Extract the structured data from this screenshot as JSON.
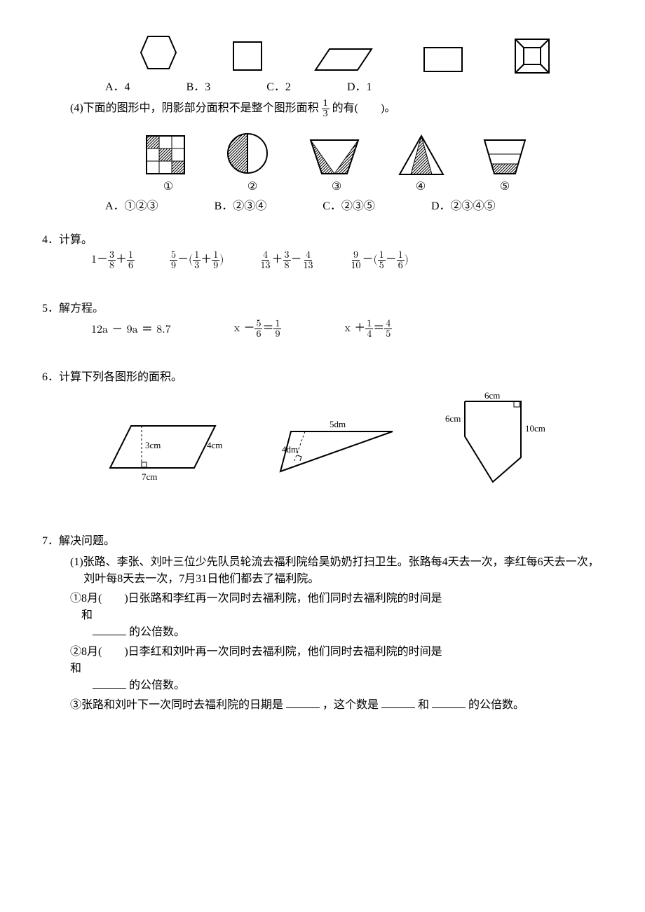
{
  "q3_shapes": {
    "labels": [
      "A．4",
      "B．3",
      "C．2",
      "D．1"
    ]
  },
  "q3_4": {
    "stem_pre": "(4)下面的图形中，阴影部分面积不是整个图形面积",
    "frac": {
      "num": "1",
      "den": "3"
    },
    "stem_post": "的有(　　)。",
    "circled": [
      "①",
      "②",
      "③",
      "④",
      "⑤"
    ],
    "options": [
      "A．①②③",
      "B．②③④",
      "C．②③⑤",
      "D．②③④⑤"
    ]
  },
  "q4": {
    "title": "4．计算。",
    "exprs": [
      [
        {
          "t": "1－"
        },
        {
          "f": [
            "3",
            "8"
          ]
        },
        {
          "t": "＋"
        },
        {
          "f": [
            "1",
            "6"
          ]
        }
      ],
      [
        {
          "f": [
            "5",
            "9"
          ]
        },
        {
          "t": "－("
        },
        {
          "f": [
            "1",
            "3"
          ]
        },
        {
          "t": "＋"
        },
        {
          "f": [
            "1",
            "9"
          ]
        },
        {
          "t": ")"
        }
      ],
      [
        {
          "f": [
            "4",
            "13"
          ]
        },
        {
          "t": "＋"
        },
        {
          "f": [
            "3",
            "8"
          ]
        },
        {
          "t": "－"
        },
        {
          "f": [
            "4",
            "13"
          ]
        }
      ],
      [
        {
          "f": [
            "9",
            "10"
          ]
        },
        {
          "t": "－("
        },
        {
          "f": [
            "1",
            "5"
          ]
        },
        {
          "t": "－"
        },
        {
          "f": [
            "1",
            "6"
          ]
        },
        {
          "t": ")"
        }
      ]
    ]
  },
  "q5": {
    "title": "5．解方程。",
    "eqs": [
      [
        {
          "t": "12a － 9a ＝ 8.7"
        }
      ],
      [
        {
          "t": "x －"
        },
        {
          "f": [
            "5",
            "6"
          ]
        },
        {
          "t": "＝"
        },
        {
          "f": [
            "1",
            "9"
          ]
        }
      ],
      [
        {
          "t": "x ＋"
        },
        {
          "f": [
            "1",
            "4"
          ]
        },
        {
          "t": "＝"
        },
        {
          "f": [
            "4",
            "5"
          ]
        }
      ]
    ]
  },
  "q6": {
    "title": "6．计算下列各图形的面积。",
    "fig1": {
      "h": "3cm",
      "slant": "4cm",
      "base": "7cm"
    },
    "fig2": {
      "top": "5dm",
      "h": "4dm"
    },
    "fig3": {
      "top": "6cm",
      "left": "6cm",
      "right": "10cm"
    }
  },
  "q7": {
    "title": "7．解决问题。",
    "p1": "(1)张路、李张、刘叶三位少先队员轮流去福利院给吴奶奶打扫卫生。张路每4天去一次，李红每6天去一次，刘叶每8天去一次，7月31日他们都去了福利院。",
    "s1a": "①8月(　　)日张路和李红再一次同时去福利院，他们同时去福利院的时间是",
    "s1b": "和",
    "s1c": "的公倍数。",
    "s2a": "②8月(　　)日李红和刘叶再一次同时去福利院，他们同时去福利院的时间是",
    "s2b": "和",
    "s2c": "的公倍数。",
    "s3a": "③张路和刘叶下一次同时去福利院的日期是",
    "s3b": "，这个数是",
    "s3c": "和",
    "s3d": "的公倍数。"
  }
}
